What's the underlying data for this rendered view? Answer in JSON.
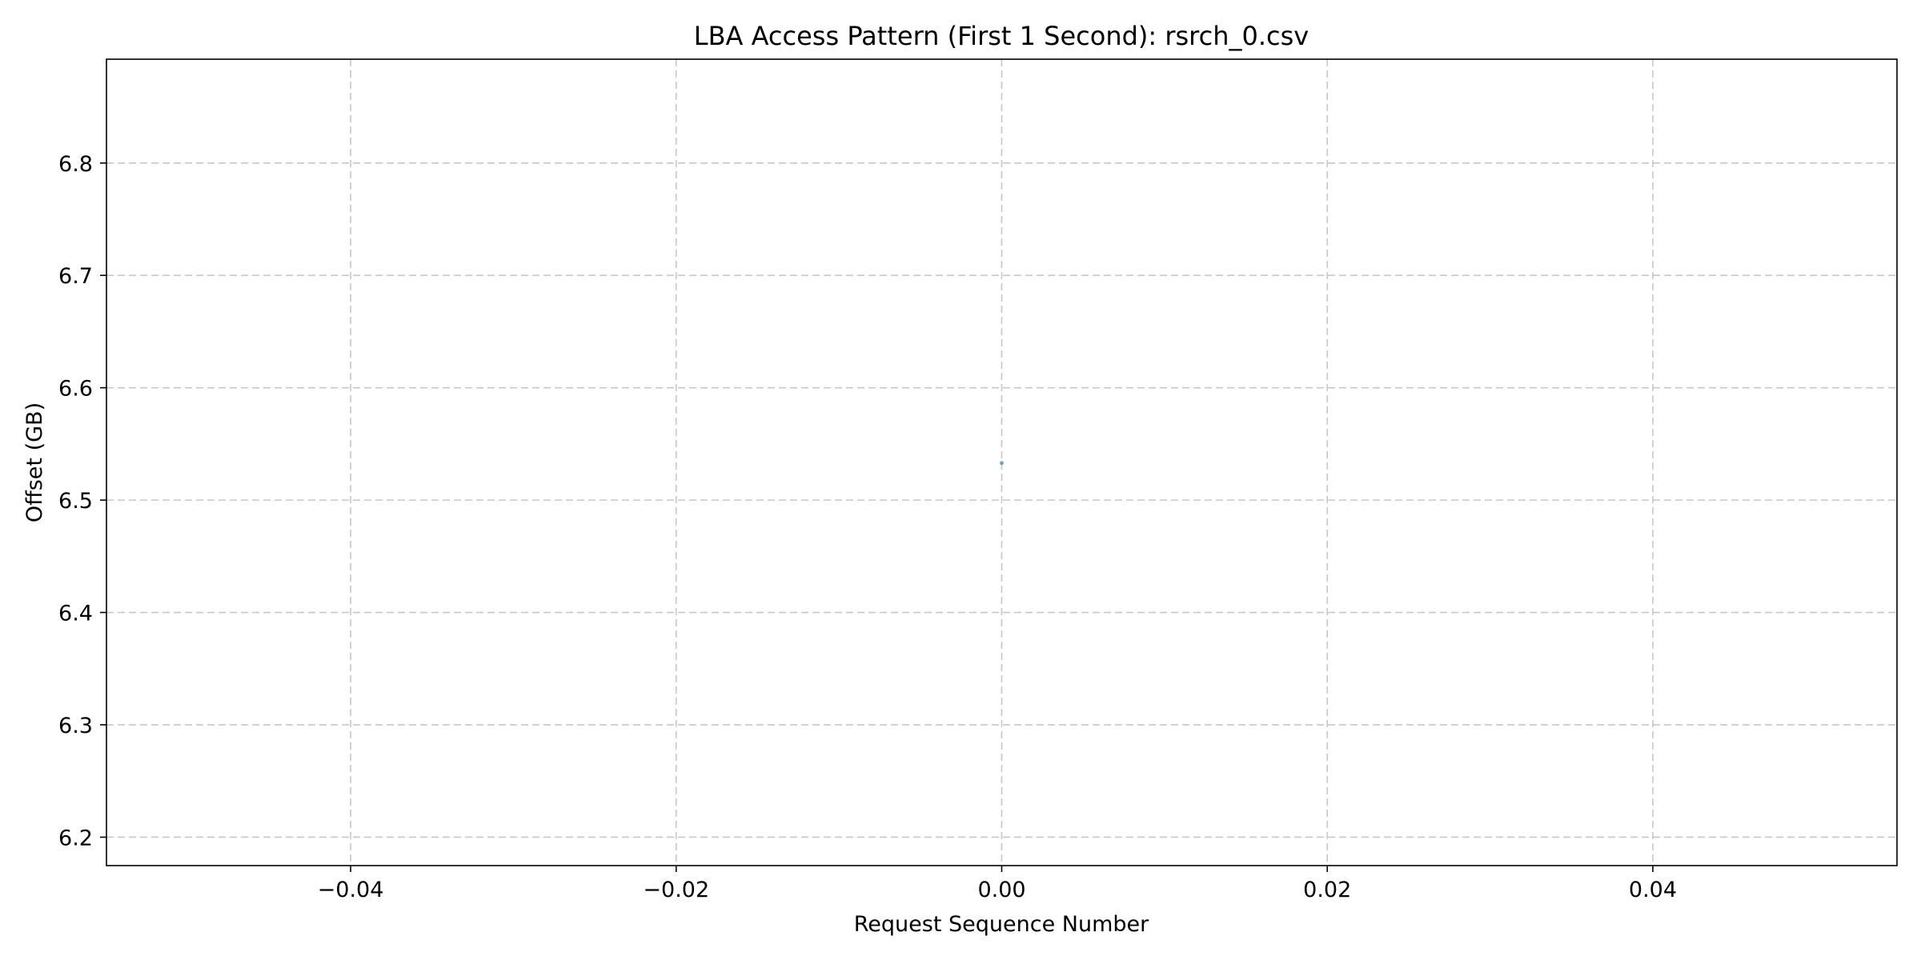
{
  "chart_data": {
    "type": "scatter",
    "title": "LBA Access Pattern (First 1 Second): rsrch_0.csv",
    "xlabel": "Request Sequence Number",
    "ylabel": "Offset (GB)",
    "xlim": [
      -0.055,
      0.055
    ],
    "ylim": [
      6.1747,
      6.8924
    ],
    "xticks": [
      -0.04,
      -0.02,
      0.0,
      0.02,
      0.04
    ],
    "xtick_labels": [
      "−0.04",
      "−0.02",
      "0.00",
      "0.02",
      "0.04"
    ],
    "yticks": [
      6.2,
      6.3,
      6.4,
      6.5,
      6.6,
      6.7,
      6.8
    ],
    "ytick_labels": [
      "6.2",
      "6.3",
      "6.4",
      "6.5",
      "6.6",
      "6.7",
      "6.8"
    ],
    "grid": true,
    "series": [
      {
        "color": "#1f77b4",
        "points": [
          {
            "x": 0,
            "y": 6.533
          }
        ]
      }
    ]
  }
}
